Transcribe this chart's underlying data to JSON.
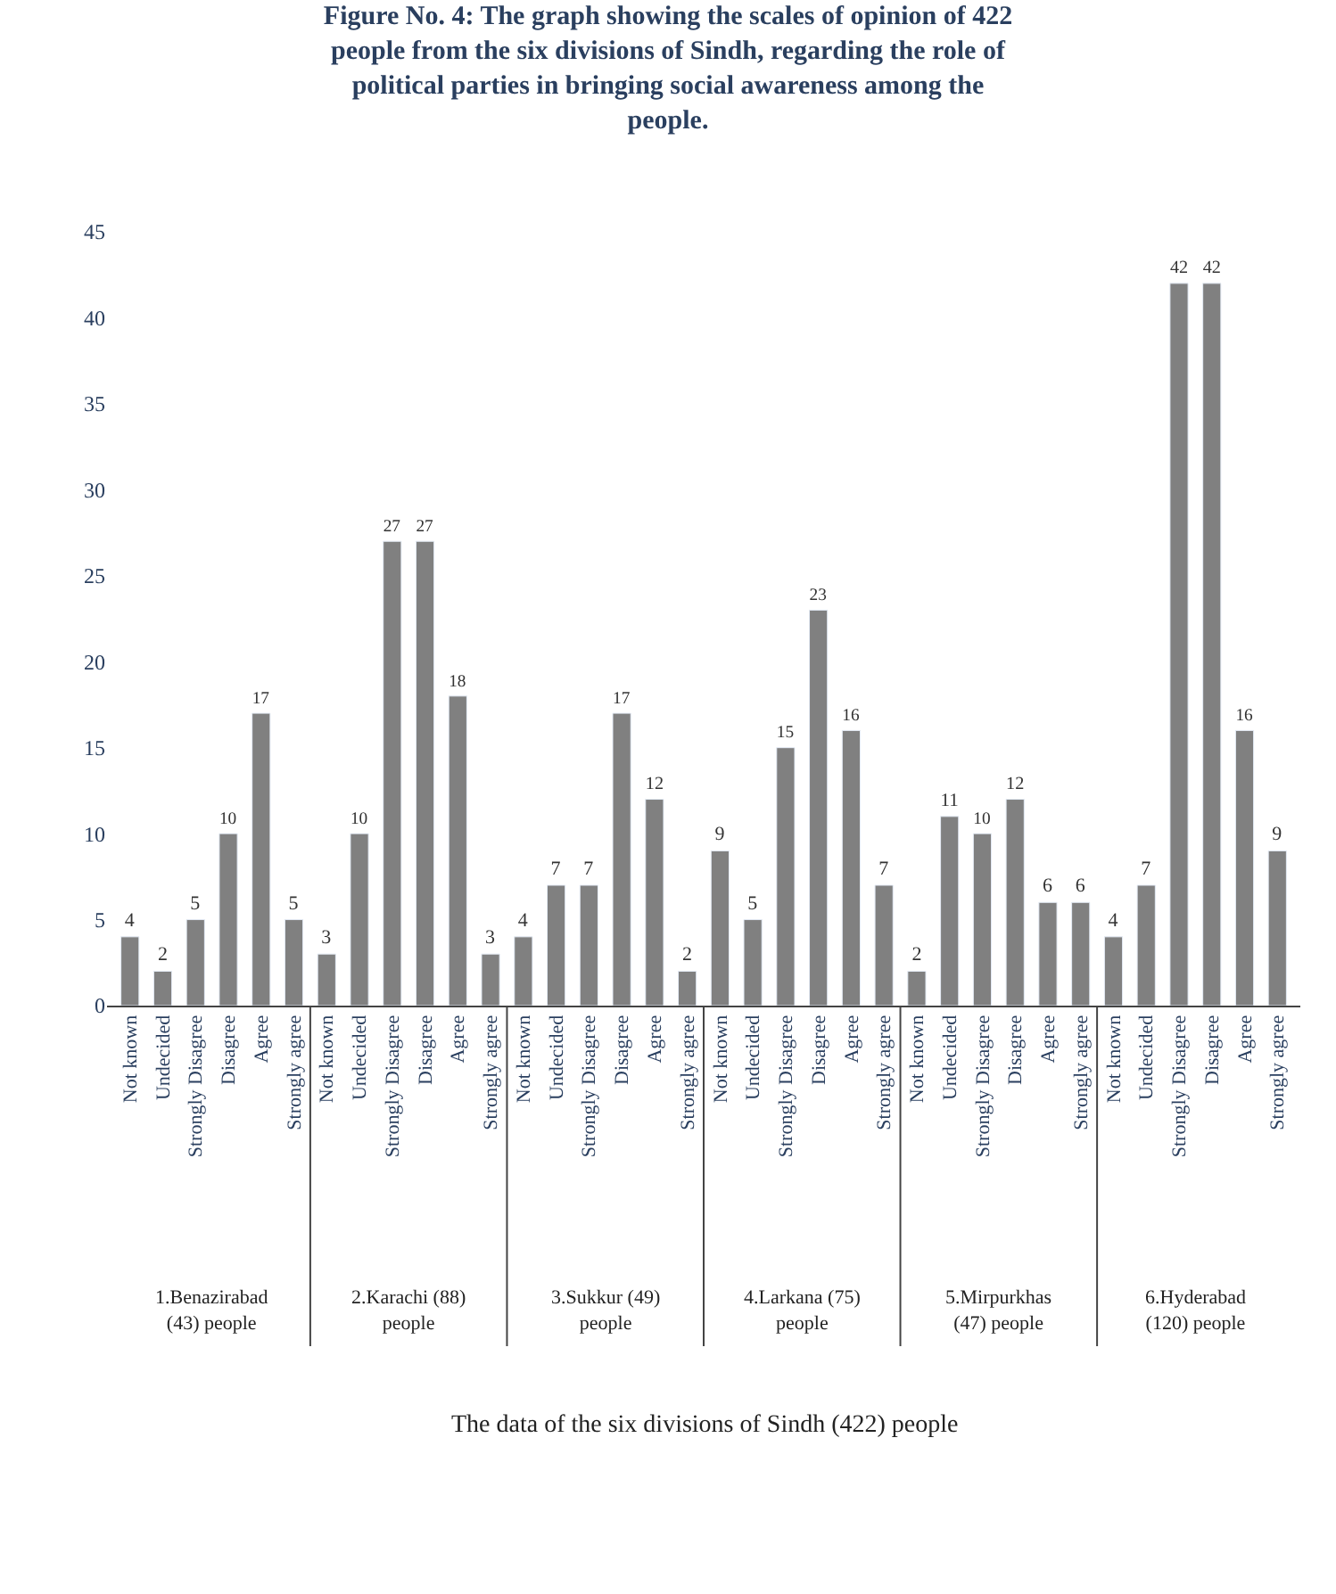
{
  "chart_data": {
    "type": "bar",
    "title": "Figure No. 4: The graph showing the scales of opinion of 422 people from the six divisions of Sindh, regarding the role of political parties in bringing social awareness among the people.",
    "categories": [
      "Not known",
      "Undecided",
      "Strongly Disagree",
      "Disagree",
      "Agree",
      "Strongly agree",
      "Not known",
      "Undecided",
      "Strongly Disagree",
      "Disagree",
      "Agree",
      "Strongly agree",
      "Not known",
      "Undecided",
      "Strongly Disagree",
      "Disagree",
      "Agree",
      "Strongly agree",
      "Not known",
      "Undecided",
      "Strongly Disagree",
      "Disagree",
      "Agree",
      "Strongly agree",
      "Not known",
      "Undecided",
      "Strongly Disagree",
      "Disagree",
      "Agree",
      "Strongly agree",
      "Not known",
      "Undecided",
      "Strongly Disagree",
      "Disagree",
      "Agree",
      "Strongly agree"
    ],
    "values": [
      4,
      2,
      5,
      10,
      17,
      5,
      3,
      10,
      27,
      27,
      18,
      3,
      4,
      7,
      7,
      17,
      12,
      2,
      9,
      5,
      15,
      23,
      16,
      7,
      2,
      11,
      10,
      12,
      6,
      6,
      4,
      7,
      42,
      42,
      16,
      9
    ],
    "color": "#808080",
    "annotations": [
      "1.Benazirabad (43) people",
      "2.Karachi (88) people",
      "3.Sukkur (49) people",
      "4.Larkana (75) people",
      "5.Mirpurkhas (47) people",
      "6.Hyderabad (120) people",
      "The data of the six divisions of Sindh (422) people"
    ],
    "ylim": [
      0,
      45
    ],
    "yticks": [
      0,
      5,
      10,
      15,
      20,
      25,
      30,
      35,
      40,
      45
    ],
    "data_labels": true,
    "legend": false
  }
}
